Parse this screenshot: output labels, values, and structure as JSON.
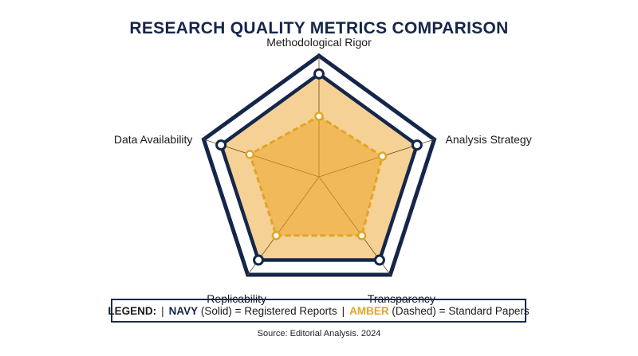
{
  "title": "RESEARCH QUALITY METRICS COMPARISON",
  "legend": {
    "heading": "LEGEND:",
    "sep": "|",
    "navy_name": "NAVY",
    "navy_style": "(Solid) = Registered Reports",
    "amber_name": "AMBER",
    "amber_style": "(Dashed) = Standard Papers"
  },
  "source": "Source: Editorial Analysis. 2024",
  "chart_data": {
    "type": "radar",
    "axes": [
      "Methodological Rigor",
      "Analysis Strategy",
      "Transparency",
      "Replicability",
      "Data Availability"
    ],
    "range": [
      0,
      1
    ],
    "grid": false,
    "series": [
      {
        "name": "NAVY (Solid) = Registered Reports",
        "style": "solid",
        "color": "#15264a",
        "values": [
          0.85,
          0.85,
          0.85,
          0.85,
          0.85
        ]
      },
      {
        "name": "AMBER (Dashed) = Standard Papers",
        "style": "dashed",
        "color": "#e0a526",
        "values": [
          0.5,
          0.55,
          0.6,
          0.6,
          0.6
        ]
      }
    ]
  }
}
